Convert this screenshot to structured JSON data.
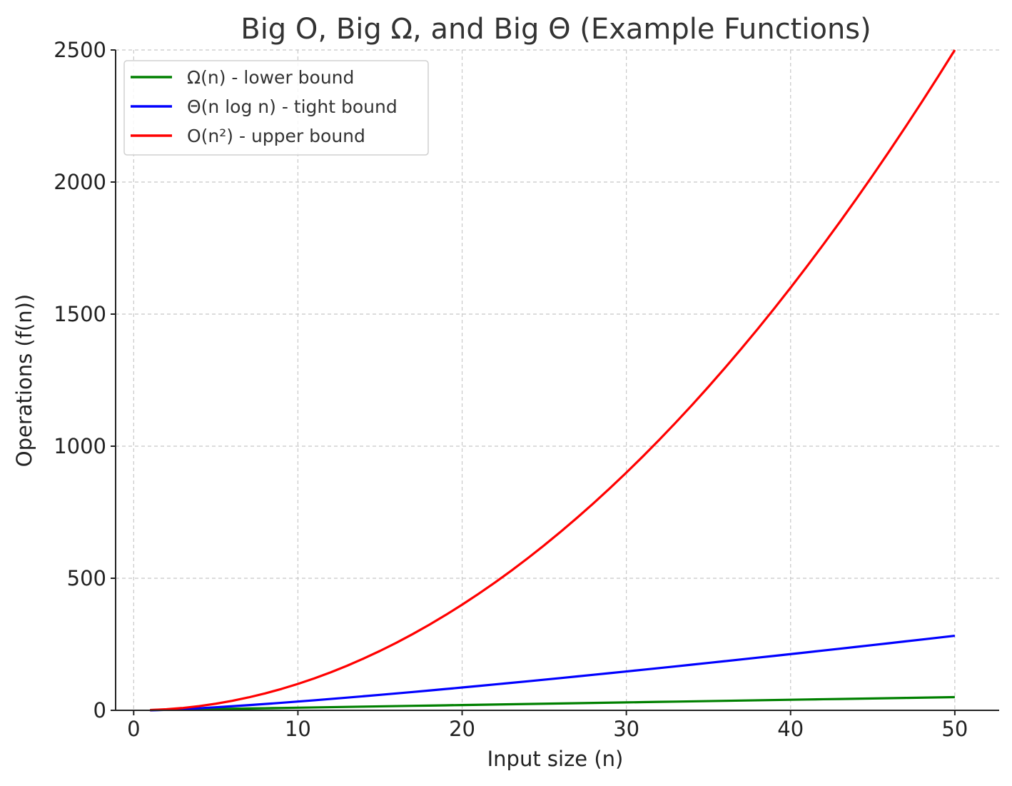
{
  "chart_data": {
    "type": "line",
    "title": "Big O, Big Ω, and Big Θ (Example Functions)",
    "xlabel": "Input size (n)",
    "ylabel": "Operations (f(n))",
    "xlim": [
      -1.1,
      52.7
    ],
    "ylim": [
      0,
      2500
    ],
    "xticks": [
      0,
      10,
      20,
      30,
      40,
      50
    ],
    "yticks": [
      0,
      500,
      1000,
      1500,
      2000,
      2500
    ],
    "grid": true,
    "legend_position": "top-left",
    "x": [
      1,
      2,
      3,
      4,
      5,
      6,
      7,
      8,
      9,
      10,
      11,
      12,
      13,
      14,
      15,
      16,
      17,
      18,
      19,
      20,
      21,
      22,
      23,
      24,
      25,
      26,
      27,
      28,
      29,
      30,
      31,
      32,
      33,
      34,
      35,
      36,
      37,
      38,
      39,
      40,
      41,
      42,
      43,
      44,
      45,
      46,
      47,
      48,
      49,
      50
    ],
    "series": [
      {
        "name": "Ω(n) - lower bound",
        "color": "#008000",
        "values": [
          1,
          2,
          3,
          4,
          5,
          6,
          7,
          8,
          9,
          10,
          11,
          12,
          13,
          14,
          15,
          16,
          17,
          18,
          19,
          20,
          21,
          22,
          23,
          24,
          25,
          26,
          27,
          28,
          29,
          30,
          31,
          32,
          33,
          34,
          35,
          36,
          37,
          38,
          39,
          40,
          41,
          42,
          43,
          44,
          45,
          46,
          47,
          48,
          49,
          50
        ]
      },
      {
        "name": "Θ(n log n) - tight bound",
        "color": "#0000ff",
        "values": [
          0,
          2,
          4.75,
          8,
          11.61,
          15.51,
          19.65,
          24,
          28.53,
          33.22,
          38.05,
          43.02,
          48.11,
          53.3,
          58.6,
          64,
          69.49,
          75.06,
          80.71,
          86.44,
          92.24,
          98.11,
          104.04,
          110.04,
          116.1,
          122.21,
          128.38,
          134.6,
          140.88,
          147.21,
          153.58,
          160,
          166.47,
          172.97,
          179.52,
          186.12,
          192.75,
          199.42,
          206.13,
          212.88,
          219.66,
          226.48,
          233.33,
          240.21,
          247.13,
          254.09,
          261.07,
          268.08,
          275.13,
          282.19
        ]
      },
      {
        "name": "O(n²) - upper bound",
        "color": "#ff0000",
        "values": [
          1,
          4,
          9,
          16,
          25,
          36,
          49,
          64,
          81,
          100,
          121,
          144,
          169,
          196,
          225,
          256,
          289,
          324,
          361,
          400,
          441,
          484,
          529,
          576,
          625,
          676,
          729,
          784,
          841,
          900,
          961,
          1024,
          1089,
          1156,
          1225,
          1296,
          1369,
          1444,
          1521,
          1600,
          1681,
          1764,
          1849,
          1936,
          2025,
          2116,
          2209,
          2304,
          2401,
          2500
        ]
      }
    ]
  }
}
